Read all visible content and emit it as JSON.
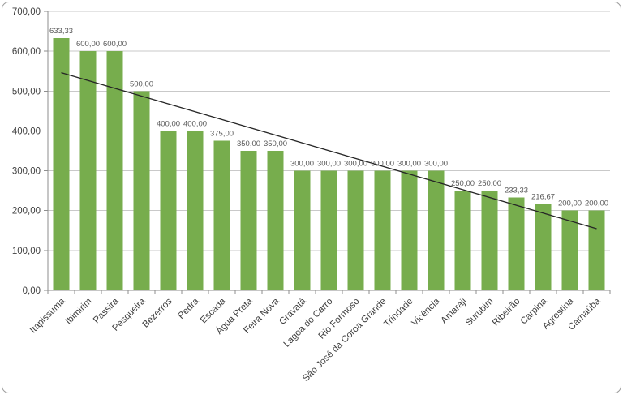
{
  "chart_data": {
    "type": "bar",
    "categories": [
      "Itapissuma",
      "Ibimirim",
      "Passira",
      "Pesqueira",
      "Bezerros",
      "Pedra",
      "Escada",
      "Água Preta",
      "Feira Nova",
      "Gravatá",
      "Lagoa do Carro",
      "Rio Formoso",
      "São José da Coroa Grande",
      "Trindade",
      "Vicência",
      "Amaraji",
      "Surubim",
      "Ribeirão",
      "Carpina",
      "Agrestina",
      "Carnaúba"
    ],
    "values": [
      633.33,
      600,
      600,
      500,
      400,
      400,
      375,
      350,
      350,
      300,
      300,
      300,
      300,
      300,
      300,
      250,
      250,
      233.33,
      216.67,
      200,
      200
    ],
    "value_labels": [
      "633,33",
      "600,00",
      "600,00",
      "500,00",
      "400,00",
      "400,00",
      "375,00",
      "350,00",
      "350,00",
      "300,00",
      "300,00",
      "300,00",
      "300,00",
      "300,00",
      "300,00",
      "250,00",
      "250,00",
      "233,33",
      "216,67",
      "200,00",
      "200,00"
    ],
    "y_tick_labels": [
      "0,00",
      "100,00",
      "200,00",
      "300,00",
      "400,00",
      "500,00",
      "600,00",
      "700,00"
    ],
    "ylim": [
      0,
      700
    ],
    "ytick_step": 100,
    "decimal_separator": ",",
    "grid": true,
    "legend": "none",
    "title": "",
    "xlabel": "",
    "ylabel": "",
    "trendline": {
      "type": "linear",
      "start_value": 546.1,
      "end_value": 154.7
    },
    "colors": {
      "bar": "#77AD4D",
      "trendline": "#262626",
      "grid": "#C9C9C9",
      "axis": "#8E8E8E",
      "value_label": "#595959",
      "tick_label": "#3F3F3F",
      "frame_border": "#9C9C9C",
      "background": "#FFFFFF"
    }
  }
}
